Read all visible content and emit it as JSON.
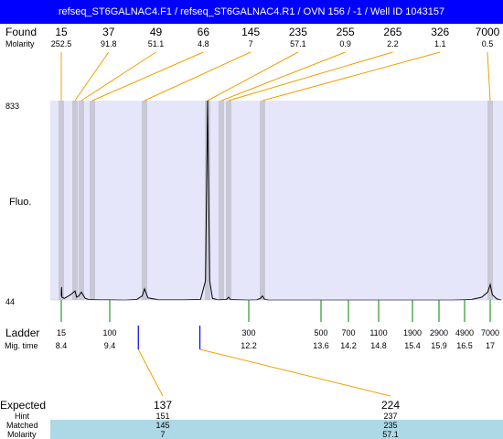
{
  "title": "refseq_ST6GALNAC4.F1 / refseq_ST6GALNAC4.R1 / OVN 156 / -1 / Well ID 1043157",
  "labels": {
    "found": "Found",
    "molarity": "Molarity",
    "fluo": "Fluo.",
    "ladder": "Ladder",
    "mig_time": "Mig. time",
    "expected": "Expected",
    "hint": "Hint",
    "matched": "Matched",
    "molarity_bottom": "Molarity"
  },
  "colors": {
    "title_bg": "#0000ff",
    "plot_bg": "#e6e6fa",
    "band": "#c8c8d7",
    "found_line": "#f0a000",
    "ladder_line": "#008000",
    "expected_mark": "#0000ff",
    "matched_bg": "#add8e6"
  },
  "chart_data": {
    "type": "line",
    "ylim": [
      44,
      833
    ],
    "y_ticks": [
      "833",
      "44"
    ],
    "found_peaks": [
      {
        "size": "15",
        "molarity": "252.5",
        "x": 15
      },
      {
        "size": "37",
        "molarity": "91.8",
        "x": 37
      },
      {
        "size": "49",
        "molarity": "51.1",
        "x": 49
      },
      {
        "size": "66",
        "molarity": "4.8",
        "x": 66
      },
      {
        "size": "145",
        "molarity": "7",
        "x": 145
      },
      {
        "size": "235",
        "molarity": "57.1",
        "x": 235
      },
      {
        "size": "255",
        "molarity": "0.9",
        "x": 255
      },
      {
        "size": "265",
        "molarity": "2.2",
        "x": 265
      },
      {
        "size": "326",
        "molarity": "1.1",
        "x": 326
      },
      {
        "size": "7000",
        "molarity": "0.5",
        "x": 7000
      }
    ],
    "ladder": [
      {
        "size": "15",
        "mig_time": "8.4"
      },
      {
        "size": "100",
        "mig_time": "9.4"
      },
      {
        "size": "300",
        "mig_time": "12.2"
      },
      {
        "size": "500",
        "mig_time": "13.6"
      },
      {
        "size": "700",
        "mig_time": "14.2"
      },
      {
        "size": "1100",
        "mig_time": "14.8"
      },
      {
        "size": "1900",
        "mig_time": "15.4"
      },
      {
        "size": "2900",
        "mig_time": "15.9"
      },
      {
        "size": "4900",
        "mig_time": "16.5"
      },
      {
        "size": "7000",
        "mig_time": "17"
      }
    ],
    "expected": [
      {
        "expected": "137",
        "hint": "151",
        "matched": "145",
        "molarity": "7"
      },
      {
        "expected": "224",
        "hint": "237",
        "matched": "235",
        "molarity": "57.1"
      }
    ],
    "trace": [
      [
        15,
        60
      ],
      [
        15.5,
        95
      ],
      [
        16,
        55
      ],
      [
        20,
        50
      ],
      [
        30,
        65
      ],
      [
        37,
        80
      ],
      [
        40,
        55
      ],
      [
        44,
        60
      ],
      [
        49,
        75
      ],
      [
        55,
        50
      ],
      [
        60,
        46
      ],
      [
        80,
        45
      ],
      [
        100,
        45
      ],
      [
        120,
        44
      ],
      [
        135,
        46
      ],
      [
        142,
        60
      ],
      [
        145,
        88
      ],
      [
        150,
        52
      ],
      [
        165,
        45
      ],
      [
        200,
        45
      ],
      [
        225,
        46
      ],
      [
        232,
        120
      ],
      [
        235,
        833
      ],
      [
        238,
        120
      ],
      [
        242,
        50
      ],
      [
        250,
        45
      ],
      [
        262,
        46
      ],
      [
        265,
        55
      ],
      [
        268,
        46
      ],
      [
        300,
        44
      ],
      [
        315,
        45
      ],
      [
        322,
        50
      ],
      [
        326,
        60
      ],
      [
        332,
        47
      ],
      [
        345,
        44
      ],
      [
        400,
        44
      ],
      [
        600,
        44
      ],
      [
        1000,
        44
      ],
      [
        2000,
        44
      ],
      [
        4000,
        44
      ],
      [
        5500,
        46
      ],
      [
        6300,
        55
      ],
      [
        6800,
        75
      ],
      [
        7000,
        105
      ],
      [
        7200,
        65
      ],
      [
        7600,
        48
      ],
      [
        8000,
        44
      ]
    ]
  }
}
